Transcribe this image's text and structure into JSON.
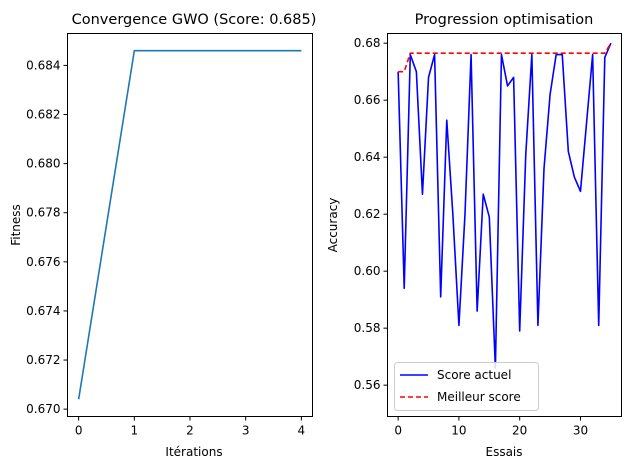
{
  "chart_data": [
    {
      "type": "line",
      "title": "Convergence GWO (Score: 0.685)",
      "xlabel": "Itérations",
      "ylabel": "Fitness",
      "xlim": [
        -0.2,
        4.2
      ],
      "ylim": [
        0.6697,
        0.6853
      ],
      "xticks": [
        0,
        1,
        2,
        3,
        4
      ],
      "yticks": [
        0.67,
        0.672,
        0.674,
        0.676,
        0.678,
        0.68,
        0.682,
        0.684
      ],
      "ytick_labels": [
        "0.670",
        "0.672",
        "0.674",
        "0.676",
        "0.678",
        "0.680",
        "0.682",
        "0.684"
      ],
      "grid": false,
      "series": [
        {
          "x": [
            0,
            1,
            2,
            3,
            4
          ],
          "values": [
            0.6704,
            0.6846,
            0.6846,
            0.6846,
            0.6846
          ],
          "color": "#1f77b4",
          "style": "solid"
        }
      ]
    },
    {
      "type": "line",
      "title": "Progression optimisation",
      "xlabel": "Essais",
      "ylabel": "Accuracy",
      "xlim": [
        -1.75,
        36.75
      ],
      "ylim": [
        0.549,
        0.6834
      ],
      "xticks": [
        0,
        10,
        20,
        30
      ],
      "yticks": [
        0.56,
        0.58,
        0.6,
        0.62,
        0.64,
        0.66,
        0.68
      ],
      "ytick_labels": [
        "0.56",
        "0.58",
        "0.60",
        "0.62",
        "0.64",
        "0.66",
        "0.68"
      ],
      "grid": false,
      "legend_position": "lower-left",
      "series": [
        {
          "name": "Score actuel",
          "color": "#0000ff",
          "style": "solid",
          "x": [
            0,
            1,
            2,
            3,
            4,
            5,
            6,
            7,
            8,
            9,
            10,
            11,
            12,
            13,
            14,
            15,
            16,
            17,
            18,
            19,
            20,
            21,
            22,
            23,
            24,
            25,
            26,
            27,
            28,
            29,
            30,
            31,
            32,
            33,
            34,
            35
          ],
          "values": [
            0.67,
            0.594,
            0.676,
            0.67,
            0.627,
            0.668,
            0.676,
            0.591,
            0.653,
            0.62,
            0.581,
            0.62,
            0.676,
            0.586,
            0.627,
            0.619,
            0.566,
            0.676,
            0.665,
            0.668,
            0.579,
            0.641,
            0.676,
            0.581,
            0.636,
            0.662,
            0.676,
            0.676,
            0.642,
            0.633,
            0.628,
            0.652,
            0.676,
            0.581,
            0.675,
            0.68
          ]
        },
        {
          "name": "Meilleur score",
          "color": "#ff0000",
          "style": "dashed",
          "x": [
            0,
            1,
            2,
            3,
            4,
            5,
            6,
            7,
            8,
            9,
            10,
            11,
            12,
            13,
            14,
            15,
            16,
            17,
            18,
            19,
            20,
            21,
            22,
            23,
            24,
            25,
            26,
            27,
            28,
            29,
            30,
            31,
            32,
            33,
            34,
            35
          ],
          "values": [
            0.67,
            0.67,
            0.6765,
            0.6765,
            0.6765,
            0.6765,
            0.6765,
            0.6765,
            0.6765,
            0.6765,
            0.6765,
            0.6765,
            0.6765,
            0.6765,
            0.6765,
            0.6765,
            0.6765,
            0.6765,
            0.6765,
            0.6765,
            0.6765,
            0.6765,
            0.6765,
            0.6765,
            0.6765,
            0.6765,
            0.6765,
            0.6765,
            0.6765,
            0.6765,
            0.6765,
            0.6765,
            0.6765,
            0.6765,
            0.6765,
            0.68
          ]
        }
      ]
    }
  ]
}
